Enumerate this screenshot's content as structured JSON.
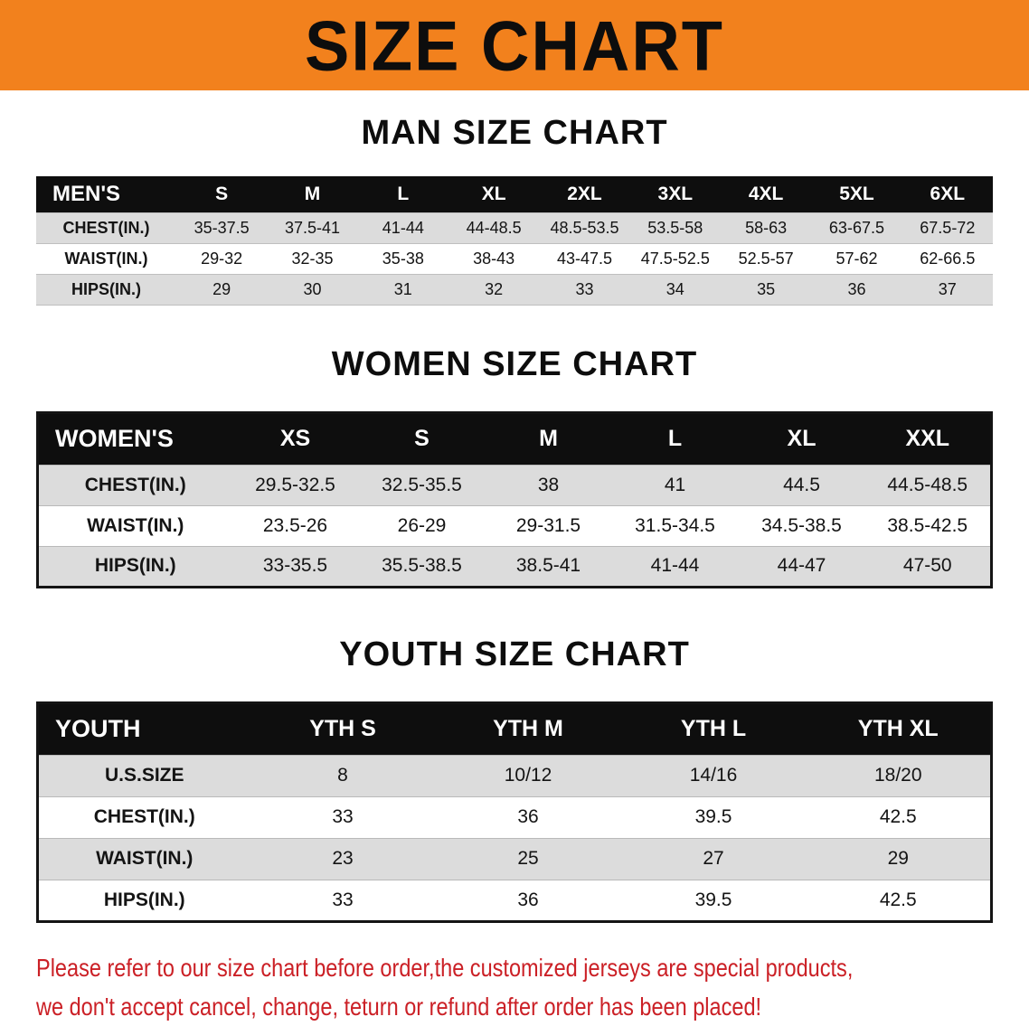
{
  "banner": {
    "title": "SIZE CHART",
    "bg_color": "#F2811D"
  },
  "sections": [
    {
      "title": "MAN SIZE CHART",
      "table": {
        "header": [
          "MEN'S",
          "S",
          "M",
          "L",
          "XL",
          "2XL",
          "3XL",
          "4XL",
          "5XL",
          "6XL"
        ],
        "rows": [
          [
            "CHEST(IN.)",
            "35-37.5",
            "37.5-41",
            "41-44",
            "44-48.5",
            "48.5-53.5",
            "53.5-58",
            "58-63",
            "63-67.5",
            "67.5-72"
          ],
          [
            "WAIST(IN.)",
            "29-32",
            "32-35",
            "35-38",
            "38-43",
            "43-47.5",
            "47.5-52.5",
            "52.5-57",
            "57-62",
            "62-66.5"
          ],
          [
            "HIPS(IN.)",
            "29",
            "30",
            "31",
            "32",
            "33",
            "34",
            "35",
            "36",
            "37"
          ]
        ]
      }
    },
    {
      "title": "WOMEN SIZE CHART",
      "table": {
        "header": [
          "WOMEN'S",
          "XS",
          "S",
          "M",
          "L",
          "XL",
          "XXL"
        ],
        "rows": [
          [
            "CHEST(IN.)",
            "29.5-32.5",
            "32.5-35.5",
            "38",
            "41",
            "44.5",
            "44.5-48.5"
          ],
          [
            "WAIST(IN.)",
            "23.5-26",
            "26-29",
            "29-31.5",
            "31.5-34.5",
            "34.5-38.5",
            "38.5-42.5"
          ],
          [
            "HIPS(IN.)",
            "33-35.5",
            "35.5-38.5",
            "38.5-41",
            "41-44",
            "44-47",
            "47-50"
          ]
        ]
      }
    },
    {
      "title": "YOUTH SIZE CHART",
      "table": {
        "header": [
          "YOUTH",
          "YTH S",
          "YTH M",
          "YTH L",
          "YTH XL"
        ],
        "rows": [
          [
            "U.S.SIZE",
            "8",
            "10/12",
            "14/16",
            "18/20"
          ],
          [
            "CHEST(IN.)",
            "33",
            "36",
            "39.5",
            "42.5"
          ],
          [
            "WAIST(IN.)",
            "23",
            "25",
            "27",
            "29"
          ],
          [
            "HIPS(IN.)",
            "33",
            "36",
            "39.5",
            "42.5"
          ]
        ]
      }
    }
  ],
  "disclaimer": {
    "line1": "Please refer to our size chart before order,the customized jerseys are special products,",
    "line2": "we don't accept cancel, change, teturn or refund after order has been placed!",
    "color": "#CB2026"
  }
}
